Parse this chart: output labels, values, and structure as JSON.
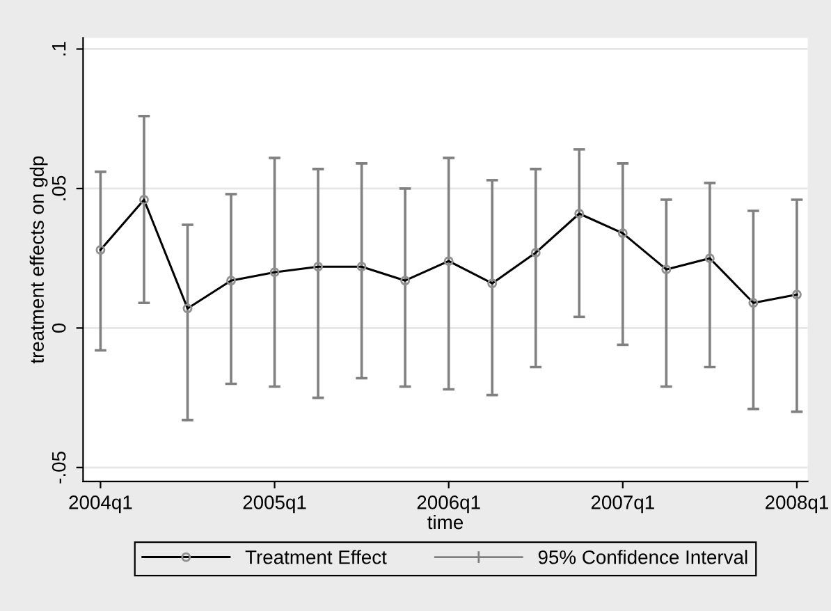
{
  "chart_data": {
    "type": "line",
    "xlabel": "time",
    "ylabel": "treatment effects on gdp",
    "categories": [
      "2004q1",
      null,
      null,
      null,
      "2005q1",
      null,
      null,
      null,
      "2006q1",
      null,
      null,
      null,
      "2007q1",
      null,
      null,
      null,
      "2008q1"
    ],
    "series": [
      {
        "name": "Treatment Effect",
        "color": "#000000",
        "values": [
          0.028,
          0.046,
          0.007,
          0.017,
          0.02,
          0.022,
          0.022,
          0.017,
          0.024,
          0.016,
          0.027,
          0.041,
          0.034,
          0.021,
          0.025,
          0.009,
          0.012
        ],
        "errors": [
          [
            -0.008,
            0.056
          ],
          [
            0.009,
            0.076
          ],
          [
            -0.033,
            0.037
          ],
          [
            -0.02,
            0.048
          ],
          [
            -0.021,
            0.061
          ],
          [
            -0.025,
            0.057
          ],
          [
            -0.018,
            0.059
          ],
          [
            -0.021,
            0.05
          ],
          [
            -0.022,
            0.061
          ],
          [
            -0.024,
            0.053
          ],
          [
            -0.014,
            0.057
          ],
          [
            0.004,
            0.064
          ],
          [
            -0.006,
            0.059
          ],
          [
            -0.021,
            0.046
          ],
          [
            -0.014,
            0.052
          ],
          [
            -0.029,
            0.042
          ],
          [
            -0.03,
            0.046
          ]
        ]
      }
    ],
    "annotations": [
      "95% Confidence Interval"
    ],
    "ylim": [
      -0.055,
      0.104
    ],
    "yticks": [
      {
        "value": -0.05,
        "label": "-.05"
      },
      {
        "value": 0,
        "label": "0"
      },
      {
        "value": 0.05,
        "label": ".05"
      },
      {
        "value": 0.1,
        "label": ".1"
      }
    ],
    "grid": "y",
    "legend": "bottom",
    "marker": "circle"
  }
}
